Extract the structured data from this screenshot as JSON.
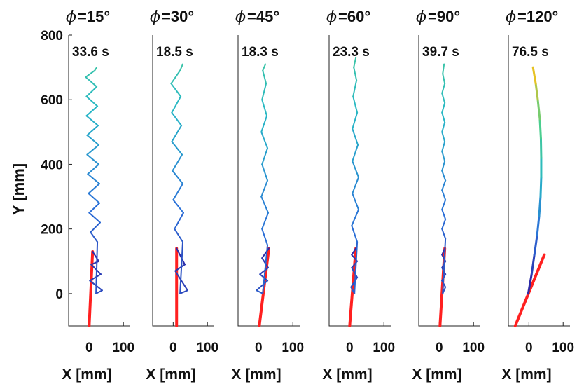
{
  "y_axis": {
    "label": "Y [mm]",
    "ticks": [
      0,
      200,
      400,
      600,
      800
    ],
    "tick_labels": [
      "0",
      "200",
      "400",
      "600",
      "800"
    ],
    "range": [
      -100,
      800
    ]
  },
  "x_axis": {
    "label": "X [mm]",
    "ticks": [
      0,
      100
    ],
    "tick_labels": [
      "0",
      "100"
    ],
    "range": [
      -60,
      120
    ]
  },
  "colors": {
    "red_segment": "#ff2020",
    "trajectory_gradient": [
      "#2c2aa8",
      "#2a6fd8",
      "#27b7c6",
      "#4fd08a",
      "#e6c224"
    ]
  },
  "chart_data": [
    {
      "type": "line",
      "title_symbol": "ϕ",
      "title_value": "=15°",
      "time_label": "33.6 s",
      "red_segment": [
        [
          0,
          -100
        ],
        [
          10,
          130
        ]
      ],
      "trajectory": [
        [
          10,
          130
        ],
        [
          28,
          100
        ],
        [
          6,
          90
        ],
        [
          34,
          60
        ],
        [
          2,
          40
        ],
        [
          38,
          10
        ],
        [
          20,
          0
        ],
        [
          24,
          160
        ],
        [
          4,
          190
        ],
        [
          32,
          220
        ],
        [
          0,
          250
        ],
        [
          30,
          280
        ],
        [
          -2,
          310
        ],
        [
          30,
          340
        ],
        [
          -4,
          370
        ],
        [
          28,
          400
        ],
        [
          -6,
          430
        ],
        [
          28,
          460
        ],
        [
          -6,
          490
        ],
        [
          26,
          520
        ],
        [
          -8,
          550
        ],
        [
          24,
          580
        ],
        [
          -8,
          610
        ],
        [
          22,
          640
        ],
        [
          -10,
          670
        ],
        [
          16,
          690
        ],
        [
          22,
          700
        ]
      ],
      "xlabel": "X [mm]"
    },
    {
      "type": "line",
      "title_symbol": "ϕ",
      "title_value": "=30°",
      "time_label": "18.5 s",
      "red_segment": [
        [
          10,
          -100
        ],
        [
          10,
          140
        ]
      ],
      "trajectory": [
        [
          10,
          140
        ],
        [
          34,
          90
        ],
        [
          6,
          70
        ],
        [
          42,
          10
        ],
        [
          20,
          0
        ],
        [
          28,
          160
        ],
        [
          4,
          200
        ],
        [
          30,
          250
        ],
        [
          0,
          290
        ],
        [
          28,
          340
        ],
        [
          -2,
          380
        ],
        [
          26,
          430
        ],
        [
          -4,
          470
        ],
        [
          24,
          520
        ],
        [
          -4,
          560
        ],
        [
          22,
          610
        ],
        [
          -6,
          650
        ],
        [
          20,
          690
        ],
        [
          28,
          710
        ]
      ],
      "xlabel": "X [mm]"
    },
    {
      "type": "line",
      "title_symbol": "ϕ",
      "title_value": "=45°",
      "time_label": "18.3 s",
      "red_segment": [
        [
          2,
          -100
        ],
        [
          30,
          140
        ]
      ],
      "trajectory": [
        [
          30,
          140
        ],
        [
          10,
          110
        ],
        [
          28,
          80
        ],
        [
          4,
          60
        ],
        [
          26,
          40
        ],
        [
          -6,
          10
        ],
        [
          12,
          0
        ],
        [
          26,
          150
        ],
        [
          10,
          200
        ],
        [
          28,
          250
        ],
        [
          8,
          300
        ],
        [
          26,
          350
        ],
        [
          10,
          400
        ],
        [
          26,
          450
        ],
        [
          8,
          500
        ],
        [
          24,
          550
        ],
        [
          10,
          600
        ],
        [
          22,
          650
        ],
        [
          12,
          690
        ],
        [
          20,
          710
        ]
      ],
      "xlabel": "X [mm]"
    },
    {
      "type": "line",
      "title_symbol": "ϕ",
      "title_value": "=60°",
      "time_label": "23.3 s",
      "red_segment": [
        [
          0,
          -100
        ],
        [
          18,
          140
        ]
      ],
      "trajectory": [
        [
          18,
          140
        ],
        [
          6,
          120
        ],
        [
          22,
          100
        ],
        [
          6,
          80
        ],
        [
          22,
          50
        ],
        [
          4,
          20
        ],
        [
          14,
          0
        ],
        [
          22,
          160
        ],
        [
          6,
          210
        ],
        [
          26,
          260
        ],
        [
          8,
          310
        ],
        [
          26,
          360
        ],
        [
          8,
          410
        ],
        [
          24,
          460
        ],
        [
          8,
          510
        ],
        [
          22,
          560
        ],
        [
          10,
          610
        ],
        [
          20,
          660
        ],
        [
          12,
          700
        ],
        [
          18,
          730
        ]
      ],
      "xlabel": "X [mm]"
    },
    {
      "type": "line",
      "title_symbol": "ϕ",
      "title_value": "=90°",
      "time_label": "39.7 s",
      "red_segment": [
        [
          2,
          -100
        ],
        [
          16,
          140
        ]
      ],
      "trajectory": [
        [
          16,
          140
        ],
        [
          8,
          120
        ],
        [
          18,
          100
        ],
        [
          8,
          80
        ],
        [
          18,
          60
        ],
        [
          8,
          40
        ],
        [
          18,
          20
        ],
        [
          10,
          0
        ],
        [
          18,
          170
        ],
        [
          8,
          200
        ],
        [
          18,
          230
        ],
        [
          8,
          260
        ],
        [
          18,
          290
        ],
        [
          8,
          320
        ],
        [
          18,
          350
        ],
        [
          8,
          380
        ],
        [
          16,
          410
        ],
        [
          8,
          440
        ],
        [
          16,
          470
        ],
        [
          8,
          500
        ],
        [
          16,
          530
        ],
        [
          8,
          560
        ],
        [
          16,
          590
        ],
        [
          8,
          620
        ],
        [
          16,
          650
        ],
        [
          10,
          680
        ],
        [
          14,
          710
        ]
      ],
      "xlabel": "X [mm]"
    },
    {
      "type": "line",
      "title_symbol": "ϕ",
      "title_value": "=120°",
      "time_label": "76.5 s",
      "red_segment": [
        [
          -40,
          -100
        ],
        [
          45,
          120
        ]
      ],
      "trajectory": [
        [
          -2,
          0
        ],
        [
          8,
          60
        ],
        [
          16,
          120
        ],
        [
          24,
          180
        ],
        [
          30,
          240
        ],
        [
          34,
          300
        ],
        [
          36,
          360
        ],
        [
          36,
          420
        ],
        [
          35,
          480
        ],
        [
          32,
          540
        ],
        [
          26,
          600
        ],
        [
          20,
          650
        ],
        [
          12,
          700
        ]
      ],
      "xlabel": "X [mm]"
    }
  ]
}
